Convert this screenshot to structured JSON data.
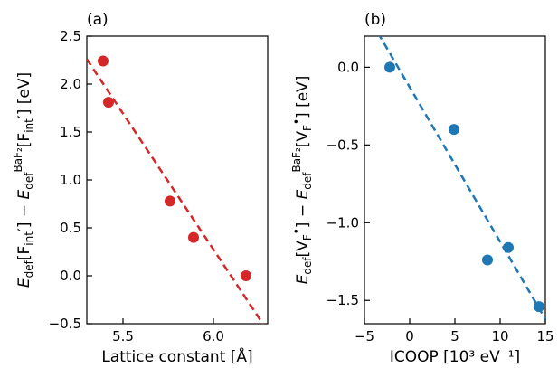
{
  "chart_data": [
    {
      "type": "scatter",
      "panel_label": "(a)",
      "xlabel": "Lattice constant [Å]",
      "ylabel": "E_def[F'_int] − E_def^BaF2[F'_int] [eV]",
      "xlim": [
        5.3,
        6.3
      ],
      "ylim": [
        -0.5,
        2.5
      ],
      "xticks": [
        5.5,
        6.0
      ],
      "xtick_labels": [
        "5.5",
        "6.0"
      ],
      "yticks": [
        -0.5,
        0.0,
        0.5,
        1.0,
        1.5,
        2.0,
        2.5
      ],
      "ytick_labels": [
        "−0.5",
        "0.0",
        "0.5",
        "1.0",
        "1.5",
        "2.0",
        "2.5"
      ],
      "color": "#d62728",
      "points": {
        "x": [
          5.39,
          5.42,
          5.76,
          5.89,
          6.18
        ],
        "y": [
          2.24,
          1.81,
          0.78,
          0.4,
          0.0
        ]
      },
      "fit_line": {
        "x": [
          5.3,
          6.28
        ],
        "y": [
          2.26,
          -0.52
        ]
      },
      "grid": false,
      "legend": "none"
    },
    {
      "type": "scatter",
      "panel_label": "(b)",
      "xlabel": "ICOOP [10³ eV⁻¹]",
      "ylabel": "E_def[V•_F] − E_def^BaF2[V•_F] [eV]",
      "xlim": [
        -5,
        15
      ],
      "ylim": [
        -1.65,
        0.2
      ],
      "xticks": [
        -5,
        0,
        5,
        10,
        15
      ],
      "xtick_labels": [
        "−5",
        "0",
        "5",
        "10",
        "15"
      ],
      "yticks": [
        -1.5,
        -1.0,
        -0.5,
        0.0
      ],
      "ytick_labels": [
        "−1.5",
        "−1.0",
        "−0.5",
        "0.0"
      ],
      "color": "#1f77b4",
      "points": {
        "x": [
          -2.2,
          4.9,
          8.6,
          10.9,
          14.3
        ],
        "y": [
          0.0,
          -0.4,
          -1.24,
          -1.16,
          -1.54
        ]
      },
      "fit_line": {
        "x": [
          -3.5,
          15
        ],
        "y": [
          0.22,
          -1.62
        ]
      },
      "grid": false,
      "legend": "none"
    }
  ]
}
